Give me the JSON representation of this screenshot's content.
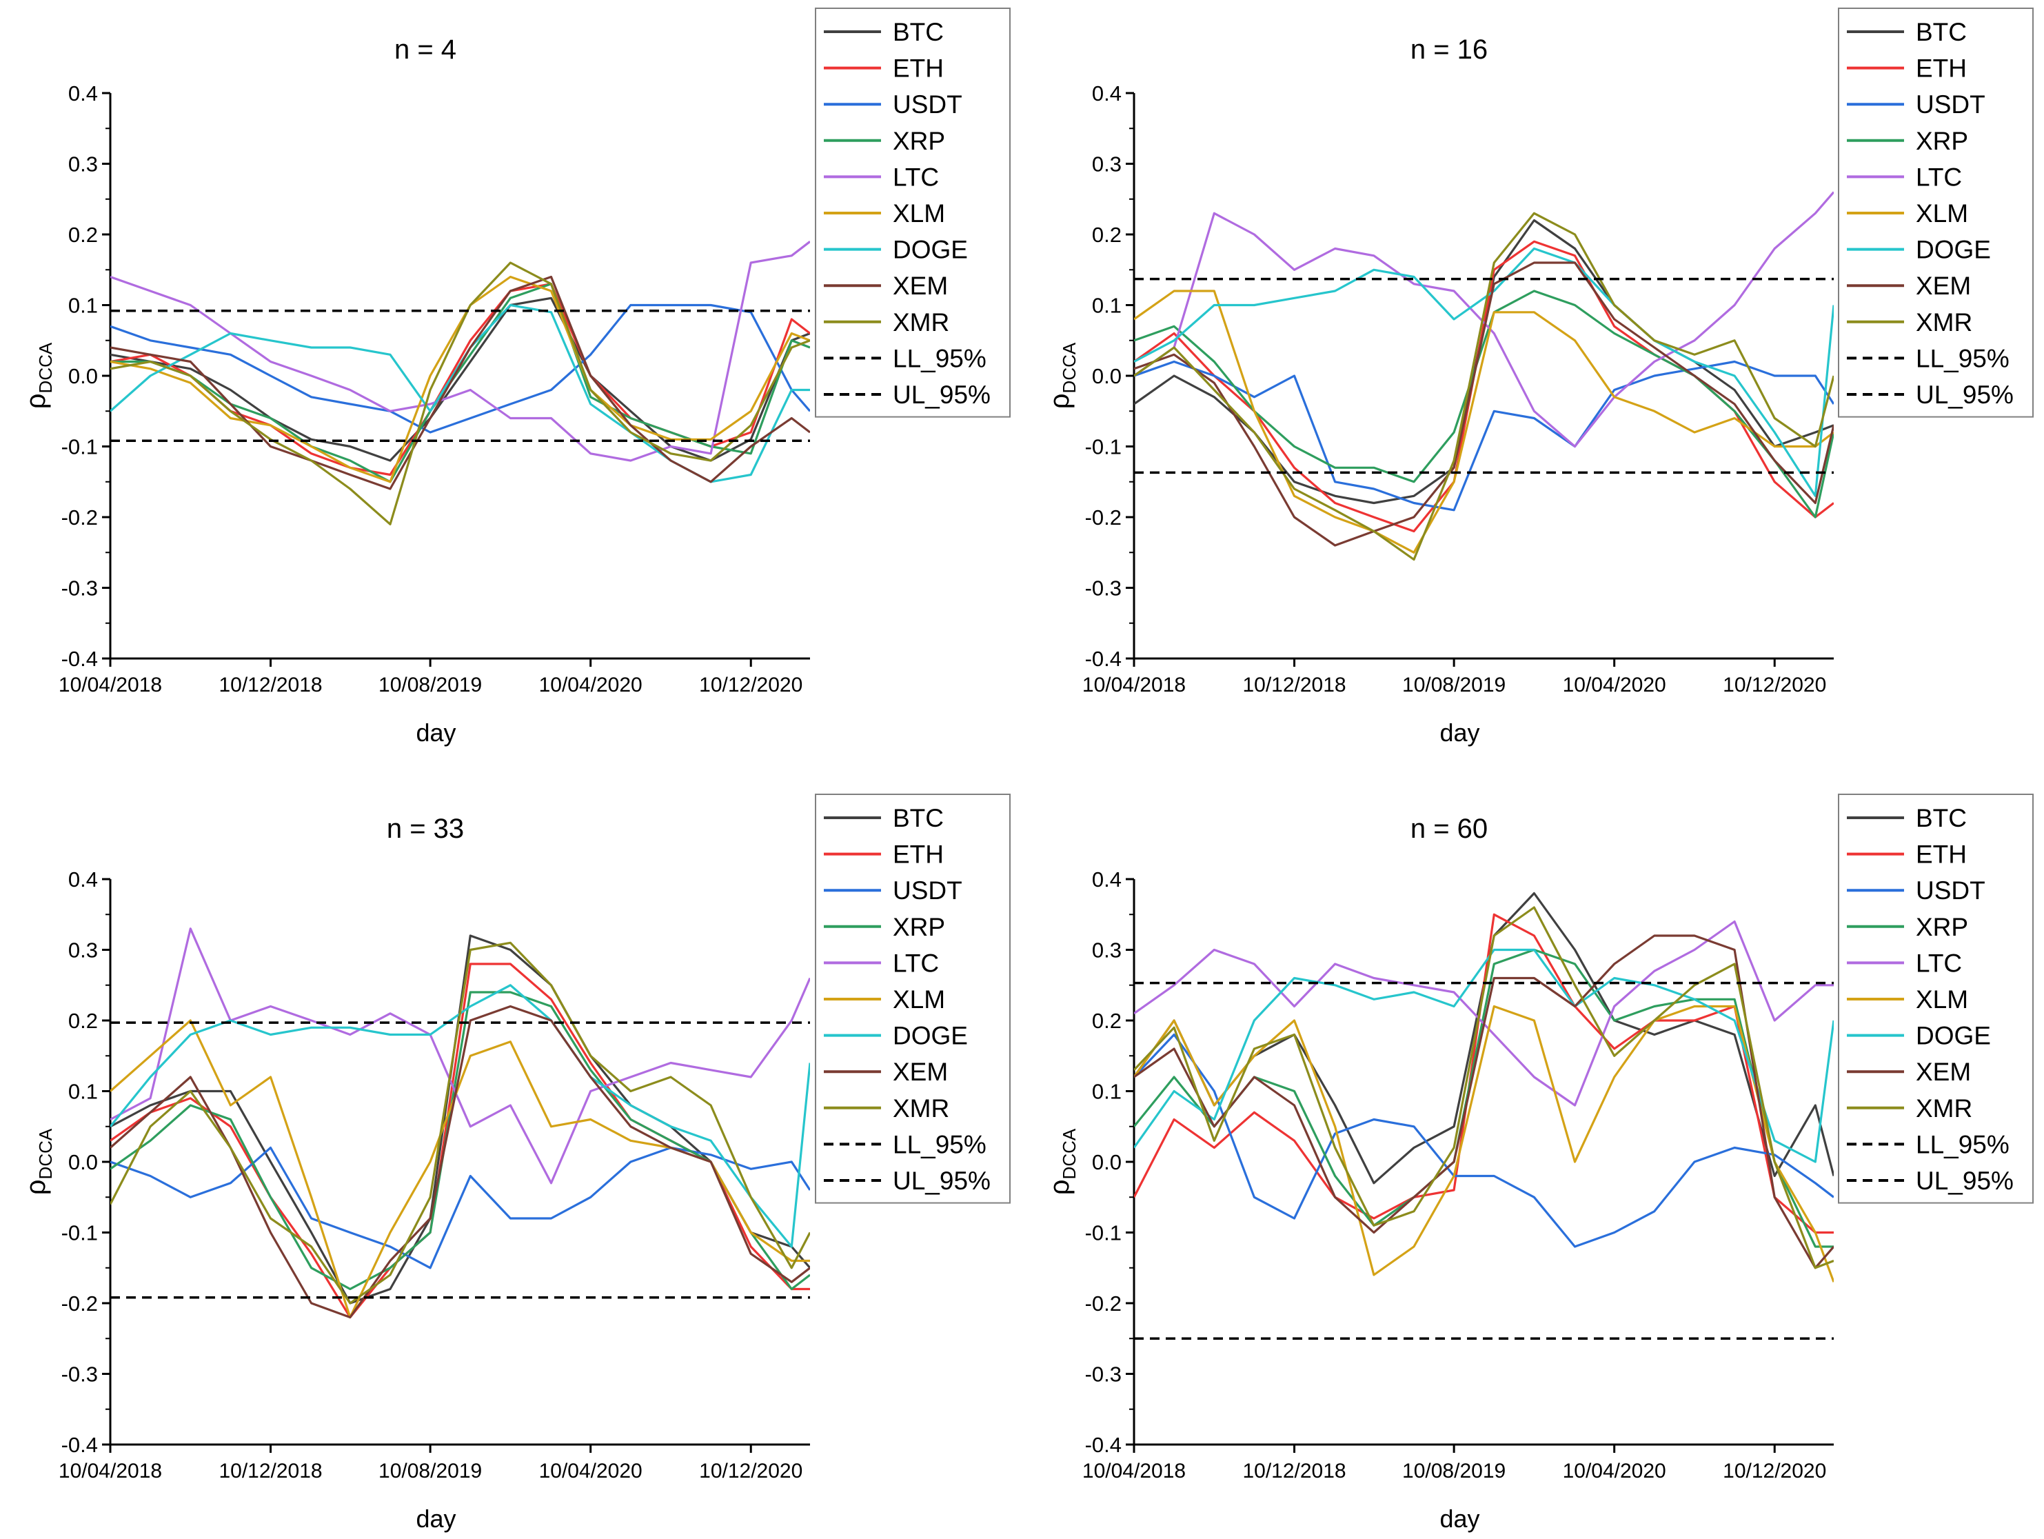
{
  "colors": {
    "BTC": "#404040",
    "ETH": "#ee3333",
    "USDT": "#2a6fdb",
    "XRP": "#2e9e5e",
    "LTC": "#b06be0",
    "XLM": "#d4a216",
    "DOGE": "#26c5cc",
    "XEM": "#7a3b32",
    "XMR": "#8c8c1c",
    "LL_95%": "#000000",
    "UL_95%": "#000000"
  },
  "legend": [
    "BTC",
    "ETH",
    "USDT",
    "XRP",
    "LTC",
    "XLM",
    "DOGE",
    "XEM",
    "XMR",
    "LL_95%",
    "UL_95%"
  ],
  "chart_data": [
    {
      "type": "line",
      "title": "n = 4",
      "xlabel": "day",
      "ylabel": "ρDCCA",
      "ylim": [
        -0.4,
        0.4
      ],
      "yticks": [
        "0.4",
        "0.3",
        "0.2",
        "0.1",
        "0.0",
        "-0.1",
        "-0.2",
        "-0.3",
        "-0.4"
      ],
      "xticks": [
        "10/04/2018",
        "10/12/2018",
        "10/08/2019",
        "10/04/2020",
        "10/12/2020"
      ],
      "x": [
        "2018-04-10",
        "2018-06-10",
        "2018-08-10",
        "2018-10-10",
        "2018-12-10",
        "2019-02-10",
        "2019-04-10",
        "2019-06-10",
        "2019-08-10",
        "2019-10-10",
        "2019-12-10",
        "2020-02-10",
        "2020-04-10",
        "2020-06-10",
        "2020-08-10",
        "2020-10-10",
        "2020-12-10",
        "2021-02-10",
        "2021-03-10"
      ],
      "limits": {
        "LL_95%": -0.092,
        "UL_95%": 0.092
      },
      "series": [
        {
          "name": "BTC",
          "values": [
            0.03,
            0.02,
            0.01,
            -0.02,
            -0.06,
            -0.09,
            -0.1,
            -0.12,
            -0.06,
            0.02,
            0.1,
            0.11,
            0.0,
            -0.05,
            -0.1,
            -0.12,
            -0.09,
            0.05,
            0.06
          ]
        },
        {
          "name": "ETH",
          "values": [
            0.02,
            0.03,
            0.0,
            -0.05,
            -0.07,
            -0.11,
            -0.13,
            -0.14,
            -0.05,
            0.05,
            0.12,
            0.13,
            0.0,
            -0.06,
            -0.08,
            -0.1,
            -0.08,
            0.08,
            0.06
          ]
        },
        {
          "name": "USDT",
          "values": [
            0.07,
            0.05,
            0.04,
            0.03,
            0.0,
            -0.03,
            -0.04,
            -0.05,
            -0.08,
            -0.06,
            -0.04,
            -0.02,
            0.03,
            0.1,
            0.1,
            0.1,
            0.09,
            -0.02,
            -0.05
          ]
        },
        {
          "name": "XRP",
          "values": [
            0.02,
            0.02,
            0.0,
            -0.04,
            -0.06,
            -0.1,
            -0.12,
            -0.15,
            -0.05,
            0.03,
            0.11,
            0.13,
            -0.03,
            -0.06,
            -0.08,
            -0.1,
            -0.11,
            0.05,
            0.04
          ]
        },
        {
          "name": "LTC",
          "values": [
            0.14,
            0.12,
            0.1,
            0.06,
            0.02,
            0.0,
            -0.02,
            -0.05,
            -0.04,
            -0.02,
            -0.06,
            -0.06,
            -0.11,
            -0.12,
            -0.1,
            -0.11,
            0.16,
            0.17,
            0.19
          ]
        },
        {
          "name": "XLM",
          "values": [
            0.02,
            0.01,
            -0.01,
            -0.06,
            -0.07,
            -0.1,
            -0.13,
            -0.15,
            0.0,
            0.1,
            0.14,
            0.12,
            -0.02,
            -0.07,
            -0.09,
            -0.09,
            -0.05,
            0.06,
            0.05
          ]
        },
        {
          "name": "DOGE",
          "values": [
            -0.05,
            0.0,
            0.03,
            0.06,
            0.05,
            0.04,
            0.04,
            0.03,
            -0.05,
            0.04,
            0.1,
            0.09,
            -0.04,
            -0.08,
            -0.12,
            -0.15,
            -0.14,
            -0.02,
            -0.02
          ]
        },
        {
          "name": "XEM",
          "values": [
            0.04,
            0.03,
            0.02,
            -0.04,
            -0.1,
            -0.12,
            -0.14,
            -0.16,
            -0.06,
            0.04,
            0.12,
            0.14,
            0.0,
            -0.07,
            -0.12,
            -0.15,
            -0.1,
            -0.06,
            -0.08
          ]
        },
        {
          "name": "XMR",
          "values": [
            0.01,
            0.02,
            0.0,
            -0.05,
            -0.09,
            -0.12,
            -0.16,
            -0.21,
            -0.02,
            0.1,
            0.16,
            0.13,
            -0.02,
            -0.08,
            -0.11,
            -0.12,
            -0.07,
            0.04,
            0.05
          ]
        }
      ]
    },
    {
      "type": "line",
      "title": "n = 16",
      "xlabel": "day",
      "ylabel": "ρDCCA",
      "ylim": [
        -0.4,
        0.4
      ],
      "yticks": [
        "0.4",
        "0.3",
        "0.2",
        "0.1",
        "0.0",
        "-0.1",
        "-0.2",
        "-0.3",
        "-0.4"
      ],
      "xticks": [
        "10/04/2018",
        "10/12/2018",
        "10/08/2019",
        "10/04/2020",
        "10/12/2020"
      ],
      "x": [
        "2018-04-10",
        "2018-06-10",
        "2018-08-10",
        "2018-10-10",
        "2018-12-10",
        "2019-02-10",
        "2019-04-10",
        "2019-06-10",
        "2019-08-10",
        "2019-10-10",
        "2019-12-10",
        "2020-02-10",
        "2020-04-10",
        "2020-06-10",
        "2020-08-10",
        "2020-10-10",
        "2020-12-10",
        "2021-02-10",
        "2021-03-10"
      ],
      "limits": {
        "LL_95%": -0.137,
        "UL_95%": 0.137
      },
      "series": [
        {
          "name": "BTC",
          "values": [
            -0.04,
            0.0,
            -0.03,
            -0.08,
            -0.15,
            -0.17,
            -0.18,
            -0.17,
            -0.13,
            0.14,
            0.22,
            0.18,
            0.1,
            0.05,
            0.02,
            -0.02,
            -0.1,
            -0.08,
            -0.07
          ]
        },
        {
          "name": "ETH",
          "values": [
            0.02,
            0.06,
            0.0,
            -0.05,
            -0.13,
            -0.18,
            -0.2,
            -0.22,
            -0.15,
            0.15,
            0.19,
            0.17,
            0.07,
            0.03,
            0.0,
            -0.05,
            -0.15,
            -0.2,
            -0.18
          ]
        },
        {
          "name": "USDT",
          "values": [
            0.0,
            0.02,
            0.0,
            -0.03,
            0.0,
            -0.15,
            -0.16,
            -0.18,
            -0.19,
            -0.05,
            -0.06,
            -0.1,
            -0.02,
            0.0,
            0.01,
            0.02,
            0.0,
            0.0,
            -0.04
          ]
        },
        {
          "name": "XRP",
          "values": [
            0.05,
            0.07,
            0.02,
            -0.05,
            -0.1,
            -0.13,
            -0.13,
            -0.15,
            -0.08,
            0.09,
            0.12,
            0.1,
            0.06,
            0.03,
            0.0,
            -0.05,
            -0.12,
            -0.2,
            -0.08
          ]
        },
        {
          "name": "LTC",
          "values": [
            0.0,
            0.04,
            0.23,
            0.2,
            0.15,
            0.18,
            0.17,
            0.13,
            0.12,
            0.06,
            -0.05,
            -0.1,
            -0.03,
            0.02,
            0.05,
            0.1,
            0.18,
            0.23,
            0.26
          ]
        },
        {
          "name": "XLM",
          "values": [
            0.08,
            0.12,
            0.12,
            -0.05,
            -0.17,
            -0.2,
            -0.22,
            -0.25,
            -0.15,
            0.09,
            0.09,
            0.05,
            -0.03,
            -0.05,
            -0.08,
            -0.06,
            -0.1,
            -0.1,
            -0.08
          ]
        },
        {
          "name": "DOGE",
          "values": [
            0.02,
            0.05,
            0.1,
            0.1,
            0.11,
            0.12,
            0.15,
            0.14,
            0.08,
            0.12,
            0.18,
            0.16,
            0.1,
            0.05,
            0.02,
            0.0,
            -0.08,
            -0.17,
            0.1
          ]
        },
        {
          "name": "XEM",
          "values": [
            0.01,
            0.03,
            -0.01,
            -0.1,
            -0.2,
            -0.24,
            -0.22,
            -0.2,
            -0.13,
            0.13,
            0.16,
            0.16,
            0.08,
            0.04,
            0.0,
            -0.04,
            -0.12,
            -0.18,
            -0.07
          ]
        },
        {
          "name": "XMR",
          "values": [
            0.0,
            0.04,
            -0.02,
            -0.08,
            -0.16,
            -0.19,
            -0.22,
            -0.26,
            -0.12,
            0.16,
            0.23,
            0.2,
            0.1,
            0.05,
            0.03,
            0.05,
            -0.06,
            -0.1,
            0.0
          ]
        }
      ]
    },
    {
      "type": "line",
      "title": "n = 33",
      "xlabel": "day",
      "ylabel": "ρDCCA",
      "ylim": [
        -0.4,
        0.4
      ],
      "yticks": [
        "0.4",
        "0.3",
        "0.2",
        "0.1",
        "0.0",
        "-0.1",
        "-0.2",
        "-0.3",
        "-0.4"
      ],
      "xticks": [
        "10/04/2018",
        "10/12/2018",
        "10/08/2019",
        "10/04/2020",
        "10/12/2020"
      ],
      "x": [
        "2018-04-10",
        "2018-06-10",
        "2018-08-10",
        "2018-10-10",
        "2018-12-10",
        "2019-02-10",
        "2019-04-10",
        "2019-06-10",
        "2019-08-10",
        "2019-10-10",
        "2019-12-10",
        "2020-02-10",
        "2020-04-10",
        "2020-06-10",
        "2020-08-10",
        "2020-10-10",
        "2020-12-10",
        "2021-02-10",
        "2021-03-10"
      ],
      "limits": {
        "LL_95%": -0.192,
        "UL_95%": 0.197
      },
      "series": [
        {
          "name": "BTC",
          "values": [
            0.05,
            0.08,
            0.1,
            0.1,
            0.0,
            -0.1,
            -0.2,
            -0.18,
            -0.08,
            0.32,
            0.3,
            0.25,
            0.15,
            0.08,
            0.05,
            0.0,
            -0.1,
            -0.12,
            -0.15
          ]
        },
        {
          "name": "ETH",
          "values": [
            0.03,
            0.07,
            0.09,
            0.05,
            -0.05,
            -0.13,
            -0.22,
            -0.15,
            -0.1,
            0.28,
            0.28,
            0.23,
            0.14,
            0.06,
            0.03,
            0.0,
            -0.12,
            -0.18,
            -0.18
          ]
        },
        {
          "name": "USDT",
          "values": [
            0.0,
            -0.02,
            -0.05,
            -0.03,
            0.02,
            -0.08,
            -0.1,
            -0.12,
            -0.15,
            -0.02,
            -0.08,
            -0.08,
            -0.05,
            0.0,
            0.02,
            0.01,
            -0.01,
            0.0,
            -0.04
          ]
        },
        {
          "name": "XRP",
          "values": [
            -0.01,
            0.03,
            0.08,
            0.06,
            -0.05,
            -0.15,
            -0.18,
            -0.15,
            -0.1,
            0.24,
            0.24,
            0.22,
            0.13,
            0.06,
            0.03,
            0.0,
            -0.1,
            -0.18,
            -0.16
          ]
        },
        {
          "name": "LTC",
          "values": [
            0.06,
            0.09,
            0.33,
            0.2,
            0.22,
            0.2,
            0.18,
            0.21,
            0.18,
            0.05,
            0.08,
            -0.03,
            0.1,
            0.12,
            0.14,
            0.13,
            0.12,
            0.2,
            0.26
          ]
        },
        {
          "name": "XLM",
          "values": [
            0.1,
            0.15,
            0.2,
            0.08,
            0.12,
            -0.05,
            -0.22,
            -0.1,
            0.0,
            0.15,
            0.17,
            0.05,
            0.06,
            0.03,
            0.02,
            0.0,
            -0.1,
            -0.14,
            -0.14
          ]
        },
        {
          "name": "DOGE",
          "values": [
            0.05,
            0.12,
            0.18,
            0.2,
            0.18,
            0.19,
            0.19,
            0.18,
            0.18,
            0.22,
            0.25,
            0.2,
            0.12,
            0.08,
            0.05,
            0.03,
            -0.05,
            -0.12,
            0.14
          ]
        },
        {
          "name": "XEM",
          "values": [
            0.02,
            0.07,
            0.12,
            0.02,
            -0.1,
            -0.2,
            -0.22,
            -0.14,
            -0.08,
            0.2,
            0.22,
            0.2,
            0.12,
            0.05,
            0.02,
            0.0,
            -0.13,
            -0.17,
            -0.15
          ]
        },
        {
          "name": "XMR",
          "values": [
            -0.06,
            0.05,
            0.1,
            0.02,
            -0.08,
            -0.12,
            -0.2,
            -0.16,
            -0.05,
            0.3,
            0.31,
            0.25,
            0.15,
            0.1,
            0.12,
            0.08,
            -0.05,
            -0.15,
            -0.1
          ]
        }
      ]
    },
    {
      "type": "line",
      "title": "n = 60",
      "xlabel": "day",
      "ylabel": "ρDCCA",
      "ylim": [
        -0.4,
        0.4
      ],
      "yticks": [
        "0.4",
        "0.3",
        "0.2",
        "0.1",
        "0.0",
        "-0.1",
        "-0.2",
        "-0.3",
        "-0.4"
      ],
      "xticks": [
        "10/04/2018",
        "10/12/2018",
        "10/08/2019",
        "10/04/2020",
        "10/12/2020"
      ],
      "x": [
        "2018-04-10",
        "2018-06-10",
        "2018-08-10",
        "2018-10-10",
        "2018-12-10",
        "2019-02-10",
        "2019-04-10",
        "2019-06-10",
        "2019-08-10",
        "2019-10-10",
        "2019-12-10",
        "2020-02-10",
        "2020-04-10",
        "2020-06-10",
        "2020-08-10",
        "2020-10-10",
        "2020-12-10",
        "2021-02-10",
        "2021-03-10"
      ],
      "limits": {
        "LL_95%": -0.25,
        "UL_95%": 0.253
      },
      "series": [
        {
          "name": "BTC",
          "values": [
            0.12,
            0.2,
            0.08,
            0.15,
            0.18,
            0.08,
            -0.03,
            0.02,
            0.05,
            0.32,
            0.38,
            0.3,
            0.2,
            0.18,
            0.2,
            0.18,
            -0.02,
            0.08,
            -0.02
          ]
        },
        {
          "name": "ETH",
          "values": [
            -0.05,
            0.06,
            0.02,
            0.07,
            0.03,
            -0.05,
            -0.08,
            -0.05,
            -0.04,
            0.35,
            0.32,
            0.22,
            0.16,
            0.2,
            0.2,
            0.22,
            -0.05,
            -0.1,
            -0.1
          ]
        },
        {
          "name": "USDT",
          "values": [
            0.12,
            0.18,
            0.1,
            -0.05,
            -0.08,
            0.04,
            0.06,
            0.05,
            -0.02,
            -0.02,
            -0.05,
            -0.12,
            -0.1,
            -0.07,
            0.0,
            0.02,
            0.01,
            -0.03,
            -0.05
          ]
        },
        {
          "name": "XRP",
          "values": [
            0.05,
            0.12,
            0.05,
            0.12,
            0.1,
            -0.02,
            -0.09,
            -0.05,
            0.0,
            0.28,
            0.3,
            0.28,
            0.2,
            0.22,
            0.23,
            0.23,
            0.0,
            -0.12,
            -0.12
          ]
        },
        {
          "name": "LTC",
          "values": [
            0.21,
            0.25,
            0.3,
            0.28,
            0.22,
            0.28,
            0.26,
            0.25,
            0.24,
            0.18,
            0.12,
            0.08,
            0.22,
            0.27,
            0.3,
            0.34,
            0.2,
            0.25,
            0.25
          ]
        },
        {
          "name": "XLM",
          "values": [
            0.12,
            0.2,
            0.08,
            0.15,
            0.2,
            0.05,
            -0.16,
            -0.12,
            -0.02,
            0.22,
            0.2,
            0.0,
            0.12,
            0.2,
            0.22,
            0.22,
            0.0,
            -0.1,
            -0.17
          ]
        },
        {
          "name": "DOGE",
          "values": [
            0.02,
            0.1,
            0.06,
            0.2,
            0.26,
            0.25,
            0.23,
            0.24,
            0.22,
            0.3,
            0.3,
            0.22,
            0.26,
            0.25,
            0.23,
            0.2,
            0.03,
            0.0,
            0.2
          ]
        },
        {
          "name": "XEM",
          "values": [
            0.12,
            0.16,
            0.05,
            0.12,
            0.08,
            -0.05,
            -0.1,
            -0.05,
            0.0,
            0.26,
            0.26,
            0.22,
            0.28,
            0.32,
            0.32,
            0.3,
            -0.05,
            -0.15,
            -0.12
          ]
        },
        {
          "name": "XMR",
          "values": [
            0.13,
            0.19,
            0.03,
            0.16,
            0.18,
            0.02,
            -0.09,
            -0.07,
            0.02,
            0.32,
            0.36,
            0.25,
            0.15,
            0.2,
            0.25,
            0.28,
            0.0,
            -0.15,
            -0.14
          ]
        }
      ]
    }
  ]
}
